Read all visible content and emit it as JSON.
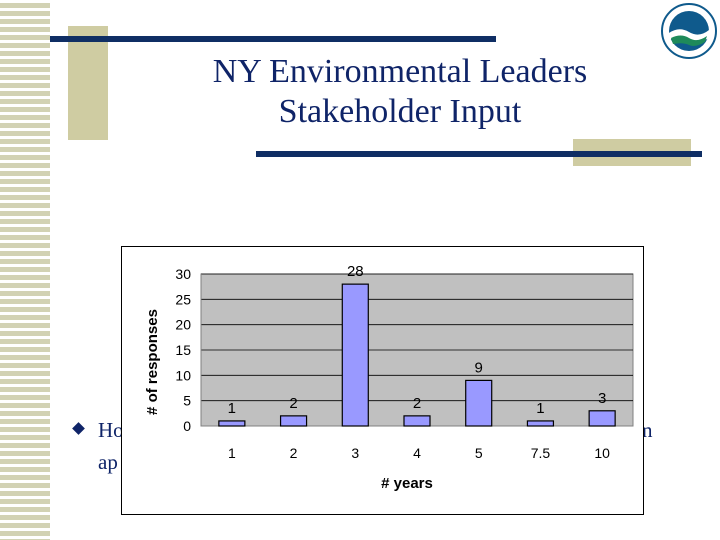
{
  "slide": {
    "title_line1": "NY Environmental Leaders",
    "title_line2": "Stakeholder Input",
    "bullet_left_fragment": "Ho",
    "bullet_right_fragment": "n",
    "bullet_line2_fragment": "ap"
  },
  "colors": {
    "title": "#0f2468",
    "navy_rule": "#0f2e64",
    "beige_accent": "#cfcca2",
    "plot_area": "#c0c0c0",
    "bar_fill": "#9999ff"
  },
  "logo": {
    "icon": "agency-seal-icon"
  },
  "chart_data": {
    "type": "bar",
    "categories": [
      "1",
      "2",
      "3",
      "4",
      "5",
      "7.5",
      "10"
    ],
    "values": [
      1,
      2,
      28,
      2,
      9,
      1,
      3
    ],
    "data_labels": [
      "1",
      "2",
      "28",
      "2",
      "9",
      "1",
      "3"
    ],
    "yticks": [
      "0",
      "5",
      "10",
      "15",
      "20",
      "25",
      "30"
    ],
    "ylim": [
      0,
      30
    ],
    "xlabel": "# years",
    "ylabel": "# of responses",
    "grid": true,
    "legend": "none"
  }
}
